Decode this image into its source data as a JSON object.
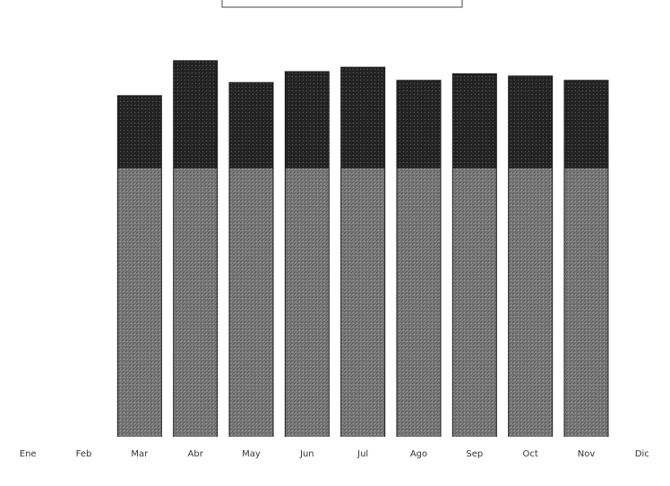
{
  "chart_data": {
    "type": "bar",
    "stacked": true,
    "title": "",
    "xlabel": "",
    "ylabel": "",
    "categories": [
      "Ene",
      "Feb",
      "Mar",
      "Abr",
      "May",
      "Jun",
      "Jul",
      "Ago",
      "Sep",
      "Oct",
      "Nov",
      "Dic"
    ],
    "series": [
      {
        "values": [
          0,
          0,
          61.5,
          61.5,
          61.5,
          61.5,
          61.5,
          61.5,
          61.5,
          61.5,
          61.5,
          0
        ]
      },
      {
        "values": [
          0,
          0,
          16.5,
          24.5,
          19.5,
          22,
          23,
          20,
          21.5,
          21,
          20,
          0
        ]
      }
    ],
    "ylim": [
      0,
      100
    ],
    "grid": false,
    "legend": "none",
    "colors": {
      "bar_fill": "#8a8a8a",
      "bar_stroke": "#1a1a1a",
      "upper_segment_fill": "#262626",
      "lower_segment_fill": "#7a7a7a",
      "tick_text": "#333333"
    }
  }
}
